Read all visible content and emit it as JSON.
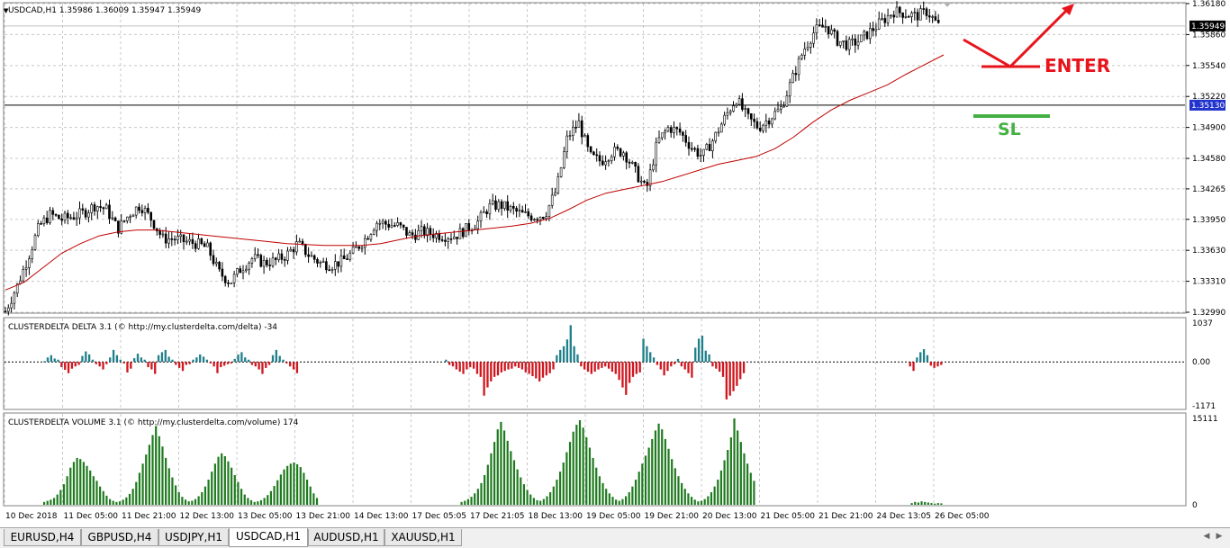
{
  "chart_data": [
    {
      "type": "candlestick",
      "title": "USDCAD,H1  1.35986 1.36009 1.35947 1.35949",
      "ylim": [
        1.3299,
        1.3618
      ],
      "yticks": [
        "1.36180",
        "1.35860",
        "1.35540",
        "1.35220",
        "1.34900",
        "1.34580",
        "1.34265",
        "1.33950",
        "1.33630",
        "1.33310",
        "1.32990"
      ],
      "xticks": [
        "10 Dec 2018",
        "11 Dec 05:00",
        "11 Dec 21:00",
        "12 Dec 13:00",
        "13 Dec 05:00",
        "13 Dec 21:00",
        "14 Dec 13:00",
        "17 Dec 05:05",
        "17 Dec 21:05",
        "18 Dec 13:00",
        "19 Dec 05:00",
        "19 Dec 21:00",
        "20 Dec 13:00",
        "21 Dec 05:00",
        "21 Dec 21:00",
        "24 Dec 13:05",
        "26 Dec 05:00"
      ],
      "current_price_label": "1.35949",
      "current_price": 1.35949,
      "sl_line_label": "1.35130",
      "sl_line_price": 1.3513,
      "close_path": [
        1.33,
        1.3325,
        1.3355,
        1.3388,
        1.34,
        1.3395,
        1.3398,
        1.3402,
        1.341,
        1.3405,
        1.3385,
        1.34,
        1.341,
        1.3395,
        1.3375,
        1.3375,
        1.3372,
        1.337,
        1.3365,
        1.334,
        1.333,
        1.3345,
        1.3355,
        1.335,
        1.3352,
        1.3358,
        1.337,
        1.3358,
        1.335,
        1.3348,
        1.3352,
        1.3362,
        1.3375,
        1.3392,
        1.339,
        1.3388,
        1.3378,
        1.3382,
        1.338,
        1.3378,
        1.3378,
        1.3385,
        1.3392,
        1.3408,
        1.341,
        1.3405,
        1.34,
        1.3398,
        1.34,
        1.3425,
        1.348,
        1.3495,
        1.346,
        1.3455,
        1.3465,
        1.3465,
        1.3445,
        1.3425,
        1.3475,
        1.349,
        1.3485,
        1.347,
        1.346,
        1.3478,
        1.35,
        1.352,
        1.35,
        1.349,
        1.35,
        1.351,
        1.354,
        1.357,
        1.359,
        1.3595,
        1.358,
        1.3575,
        1.358,
        1.359,
        1.36,
        1.361,
        1.3608,
        1.3605,
        1.361,
        1.3595
      ],
      "ma_path": [
        1.3322,
        1.333,
        1.3345,
        1.336,
        1.337,
        1.3378,
        1.3382,
        1.3384,
        1.3384,
        1.3382,
        1.338,
        1.3378,
        1.3376,
        1.3374,
        1.3372,
        1.337,
        1.3369,
        1.3368,
        1.3368,
        1.3368,
        1.337,
        1.3374,
        1.3378,
        1.338,
        1.3382,
        1.3384,
        1.3386,
        1.3388,
        1.3391,
        1.3396,
        1.3405,
        1.3415,
        1.3422,
        1.3426,
        1.343,
        1.3434,
        1.344,
        1.3446,
        1.3452,
        1.3456,
        1.346,
        1.3468,
        1.348,
        1.3495,
        1.3508,
        1.3518,
        1.3526,
        1.3534,
        1.3545,
        1.3555,
        1.3565
      ],
      "ma_color": "#c00000",
      "candle_color": "#000000"
    },
    {
      "type": "bar",
      "title": "CLUSTERDELTA DELTA 3.1 (© http://my.clusterdelta.com/delta) -34",
      "ylim": [
        -1171,
        1037
      ],
      "yticks": [
        "1037",
        "0.00",
        "-1171"
      ],
      "positive_color": "#1f7f8a",
      "negative_color": "#d0161e",
      "values": [
        20,
        120,
        180,
        90,
        60,
        -140,
        -210,
        -300,
        -180,
        -120,
        -80,
        160,
        280,
        200,
        60,
        -60,
        -120,
        -200,
        -60,
        120,
        320,
        180,
        60,
        -40,
        -280,
        -180,
        100,
        220,
        120,
        60,
        -140,
        -200,
        -320,
        180,
        260,
        320,
        140,
        60,
        -80,
        -160,
        -240,
        -80,
        -60,
        60,
        120,
        200,
        140,
        60,
        -40,
        -120,
        -300,
        -140,
        -100,
        -60,
        -40,
        80,
        200,
        260,
        120,
        60,
        -80,
        -120,
        -200,
        -320,
        -160,
        -80,
        180,
        320,
        160,
        60,
        -40,
        -120,
        -200,
        -300,
        0,
        0,
        0,
        0,
        0,
        0,
        0,
        0,
        0,
        0,
        0,
        0,
        0,
        0,
        0,
        0,
        0,
        0,
        0,
        0,
        0,
        0,
        0,
        0,
        0,
        0,
        0,
        0,
        0,
        0,
        0,
        0,
        0,
        0,
        0,
        0,
        0,
        0,
        0,
        0,
        0,
        0,
        60,
        -80,
        -120,
        -200,
        -260,
        -320,
        -200,
        -140,
        -180,
        -320,
        -400,
        -900,
        -680,
        -520,
        -400,
        -360,
        -280,
        -240,
        -200,
        -180,
        -120,
        -160,
        -200,
        -280,
        -320,
        -380,
        -440,
        -520,
        -420,
        -360,
        -300,
        -200,
        180,
        320,
        420,
        600,
        980,
        420,
        200,
        -120,
        -200,
        -260,
        -320,
        -260,
        -200,
        -160,
        -120,
        -180,
        -260,
        -320,
        -480,
        -680,
        -880,
        -560,
        -400,
        -320,
        -280,
        620,
        420,
        260,
        120,
        -80,
        -200,
        -360,
        -240,
        -120,
        -60,
        80,
        -120,
        -200,
        -300,
        -420,
        380,
        620,
        700,
        300,
        200,
        -120,
        -180,
        -260,
        -400,
        -1000,
        -900,
        -780,
        -640,
        -460,
        -300,
        0,
        0,
        0,
        0,
        0,
        0,
        0,
        0,
        0,
        0,
        0,
        0,
        0,
        0,
        0,
        0,
        0,
        0,
        0,
        0,
        0,
        0,
        0,
        0,
        0,
        0,
        0,
        0,
        0,
        0,
        0,
        0,
        0,
        0,
        0,
        0,
        0,
        0,
        0,
        0,
        0,
        0,
        0,
        0,
        0,
        0,
        0,
        -120,
        -240,
        120,
        260,
        340,
        180,
        -100,
        -160,
        -120,
        -80
      ]
    },
    {
      "type": "bar",
      "title": "CLUSTERDELTA VOLUME 3.1 (© http://my.clusterdelta.com/volume) 174",
      "ylim": [
        0,
        15111
      ],
      "yticks": [
        "15111",
        "0"
      ],
      "color": "#1e7a1e",
      "values": [
        500,
        700,
        900,
        1200,
        1800,
        2600,
        3600,
        5000,
        6500,
        7500,
        8200,
        8000,
        7500,
        6800,
        6000,
        5000,
        4200,
        3200,
        2400,
        1600,
        1000,
        700,
        500,
        600,
        900,
        1300,
        1900,
        2800,
        4000,
        5600,
        7200,
        8800,
        10500,
        12200,
        13800,
        12000,
        10200,
        8200,
        6400,
        4800,
        3400,
        2200,
        1400,
        900,
        600,
        700,
        1000,
        1500,
        2200,
        3200,
        4400,
        5800,
        7200,
        8400,
        9000,
        8500,
        7600,
        6500,
        5200,
        4000,
        2800,
        1800,
        1200,
        800,
        500,
        600,
        800,
        1200,
        1700,
        2400,
        3300,
        4300,
        5300,
        6200,
        6800,
        7200,
        7400,
        7100,
        6600,
        5600,
        4400,
        3200,
        2000,
        1200,
        0,
        0,
        0,
        0,
        0,
        0,
        0,
        0,
        0,
        0,
        0,
        0,
        0,
        0,
        0,
        0,
        0,
        0,
        0,
        0,
        0,
        0,
        0,
        0,
        0,
        0,
        0,
        0,
        0,
        0,
        0,
        0,
        0,
        0,
        0,
        0,
        0,
        0,
        0,
        0,
        0,
        0,
        0,
        500,
        700,
        1000,
        1400,
        2000,
        2800,
        3800,
        5200,
        7000,
        9000,
        11000,
        13200,
        14500,
        13000,
        11200,
        9400,
        7800,
        6200,
        4800,
        3600,
        2600,
        1800,
        1200,
        800,
        700,
        1000,
        1500,
        2200,
        3200,
        4400,
        5800,
        7400,
        9200,
        11000,
        12800,
        14000,
        14800,
        13500,
        11800,
        10000,
        8200,
        6500,
        5000,
        3800,
        2800,
        2000,
        1400,
        900,
        700,
        1000,
        1500,
        2200,
        3200,
        4400,
        5800,
        7200,
        8600,
        10000,
        11500,
        13000,
        14200,
        13200,
        11500,
        9800,
        8000,
        6400,
        5000,
        3800,
        2800,
        2000,
        1400,
        900,
        600,
        700,
        1000,
        1500,
        2200,
        3200,
        4400,
        6000,
        7800,
        9600,
        11800,
        15111,
        13000,
        11000,
        9000,
        7200,
        5600,
        4200,
        0,
        0,
        0,
        0,
        0,
        0,
        0,
        0,
        0,
        0,
        0,
        0,
        0,
        0,
        0,
        0,
        0,
        0,
        0,
        0,
        0,
        0,
        0,
        0,
        0,
        0,
        0,
        0,
        0,
        0,
        0,
        0,
        0,
        0,
        0,
        0,
        0,
        0,
        0,
        0,
        0,
        0,
        0,
        0,
        0,
        0,
        0,
        300,
        500,
        400,
        600,
        500,
        400,
        300,
        200,
        300,
        250
      ]
    }
  ],
  "annotations": {
    "enter_label": "ENTER",
    "sl_label": "SL",
    "arrow_color": "#e8141c",
    "sl_color": "#44b044"
  },
  "tabs": [
    {
      "label": "EURUSD,H4",
      "active": false
    },
    {
      "label": "GBPUSD,H4",
      "active": false
    },
    {
      "label": "USDJPY,H1",
      "active": false
    },
    {
      "label": "USDCAD,H1",
      "active": true
    },
    {
      "label": "AUDUSD,H1",
      "active": false
    },
    {
      "label": "XAUUSD,H1",
      "active": false
    }
  ]
}
